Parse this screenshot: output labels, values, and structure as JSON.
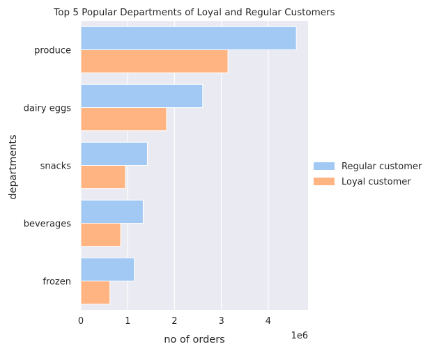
{
  "chart_data": {
    "type": "bar",
    "orientation": "horizontal",
    "title": "Top 5 Popular Departments of Loyal and Regular Customers",
    "xlabel": "no of orders",
    "ylabel": "departments",
    "x_offset_label": "1e6",
    "xlim": [
      0,
      4.85
    ],
    "x_ticks": [
      0,
      1,
      2,
      3,
      4
    ],
    "grid": true,
    "legend_position": "right",
    "categories": [
      "produce",
      "dairy eggs",
      "snacks",
      "beverages",
      "frozen"
    ],
    "series": [
      {
        "name": "Regular customer",
        "color": "#a1c9f4",
        "values": [
          4.6,
          2.6,
          1.42,
          1.33,
          1.14
        ]
      },
      {
        "name": "Loyal customer",
        "color": "#ffb482",
        "values": [
          3.14,
          1.83,
          0.95,
          0.85,
          0.62
        ]
      }
    ]
  }
}
